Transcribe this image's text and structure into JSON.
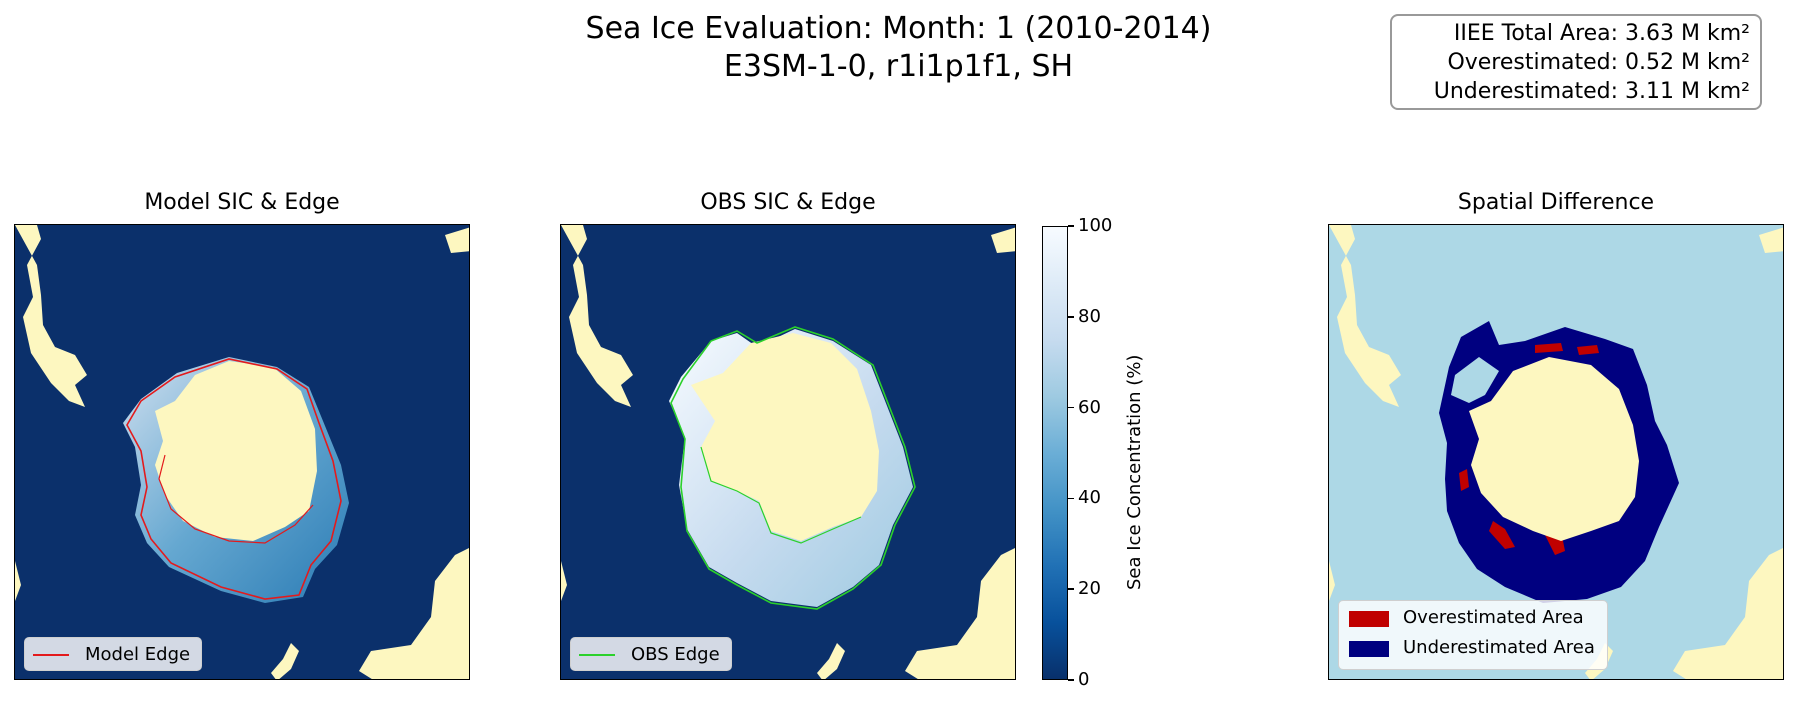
{
  "figure": {
    "title_line1": "Sea Ice Evaluation: Month: 1 (2010-2014)",
    "title_line2": "E3SM-1-0, r1i1p1f1, SH"
  },
  "stats": {
    "total": "IIEE Total Area: 3.63 M km²",
    "over": "Overestimated: 0.52 M km²",
    "under": "Underestimated: 3.11 M km²"
  },
  "panels": [
    {
      "title": "Model SIC & Edge",
      "legend": "Model Edge"
    },
    {
      "title": "OBS SIC & Edge",
      "legend": "OBS Edge"
    },
    {
      "title": "Spatial Difference",
      "legend_over": "Overestimated Area",
      "legend_under": "Underestimated Area"
    }
  ],
  "colorbar": {
    "label": "Sea Ice Concentration (%)",
    "ticks": [
      "0",
      "20",
      "40",
      "60",
      "80",
      "100"
    ]
  },
  "colors": {
    "ocean": "#0b306b",
    "land": "#fdf7c0",
    "diff_ocean": "#add8e6",
    "model_edge": "#e31a1c",
    "obs_edge": "#2bd12b",
    "overestimated": "#c00000",
    "underestimated": "#000080"
  },
  "chart_data": [
    {
      "type": "heatmap",
      "title": "Model SIC & Edge",
      "value_range": [
        0,
        100
      ],
      "series": [
        {
          "name": "Model Edge"
        }
      ]
    },
    {
      "type": "heatmap",
      "title": "OBS SIC & Edge",
      "value_range": [
        0,
        100
      ],
      "series": [
        {
          "name": "OBS Edge"
        }
      ]
    },
    {
      "type": "heatmap",
      "title": "Spatial Difference",
      "categories": [
        "Overestimated Area",
        "Underestimated Area"
      ],
      "values": [
        0.52,
        3.11
      ],
      "unit": "M km²"
    }
  ]
}
